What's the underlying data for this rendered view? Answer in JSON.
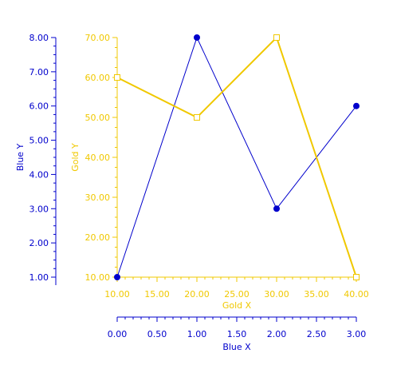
{
  "colors": {
    "blue": "#0000cc",
    "gold": "#f0c800",
    "background": "#ffffff"
  },
  "chart_data": {
    "type": "line",
    "grid": false,
    "legend": "none",
    "axes": {
      "blue_y": {
        "label": "Blue Y",
        "range": [
          1,
          8
        ],
        "ticks": [
          "1.00",
          "2.00",
          "3.00",
          "4.00",
          "5.00",
          "6.00",
          "7.00",
          "8.00"
        ]
      },
      "gold_y": {
        "label": "Gold Y",
        "range": [
          10,
          70
        ],
        "ticks": [
          "10.00",
          "20.00",
          "30.00",
          "40.00",
          "50.00",
          "60.00",
          "70.00"
        ]
      },
      "gold_x": {
        "label": "Gold X",
        "range": [
          10,
          40
        ],
        "ticks": [
          "10.00",
          "15.00",
          "20.00",
          "25.00",
          "30.00",
          "35.00",
          "40.00"
        ]
      },
      "blue_x": {
        "label": "Blue X",
        "range": [
          0,
          3
        ],
        "ticks": [
          "0.00",
          "0.50",
          "1.00",
          "1.50",
          "2.00",
          "2.50",
          "3.00"
        ]
      }
    },
    "series": [
      {
        "key": "blue",
        "x_axis": "blue_x",
        "y_axis": "blue_y",
        "marker": "filled-circle",
        "x": [
          0,
          1,
          2,
          3
        ],
        "y": [
          1.0,
          8.0,
          3.0,
          6.0
        ]
      },
      {
        "key": "gold",
        "x_axis": "gold_x",
        "y_axis": "gold_y",
        "marker": "open-square",
        "x": [
          10,
          20,
          30,
          40
        ],
        "y": [
          60.0,
          50.0,
          70.0,
          10.0
        ]
      }
    ]
  }
}
